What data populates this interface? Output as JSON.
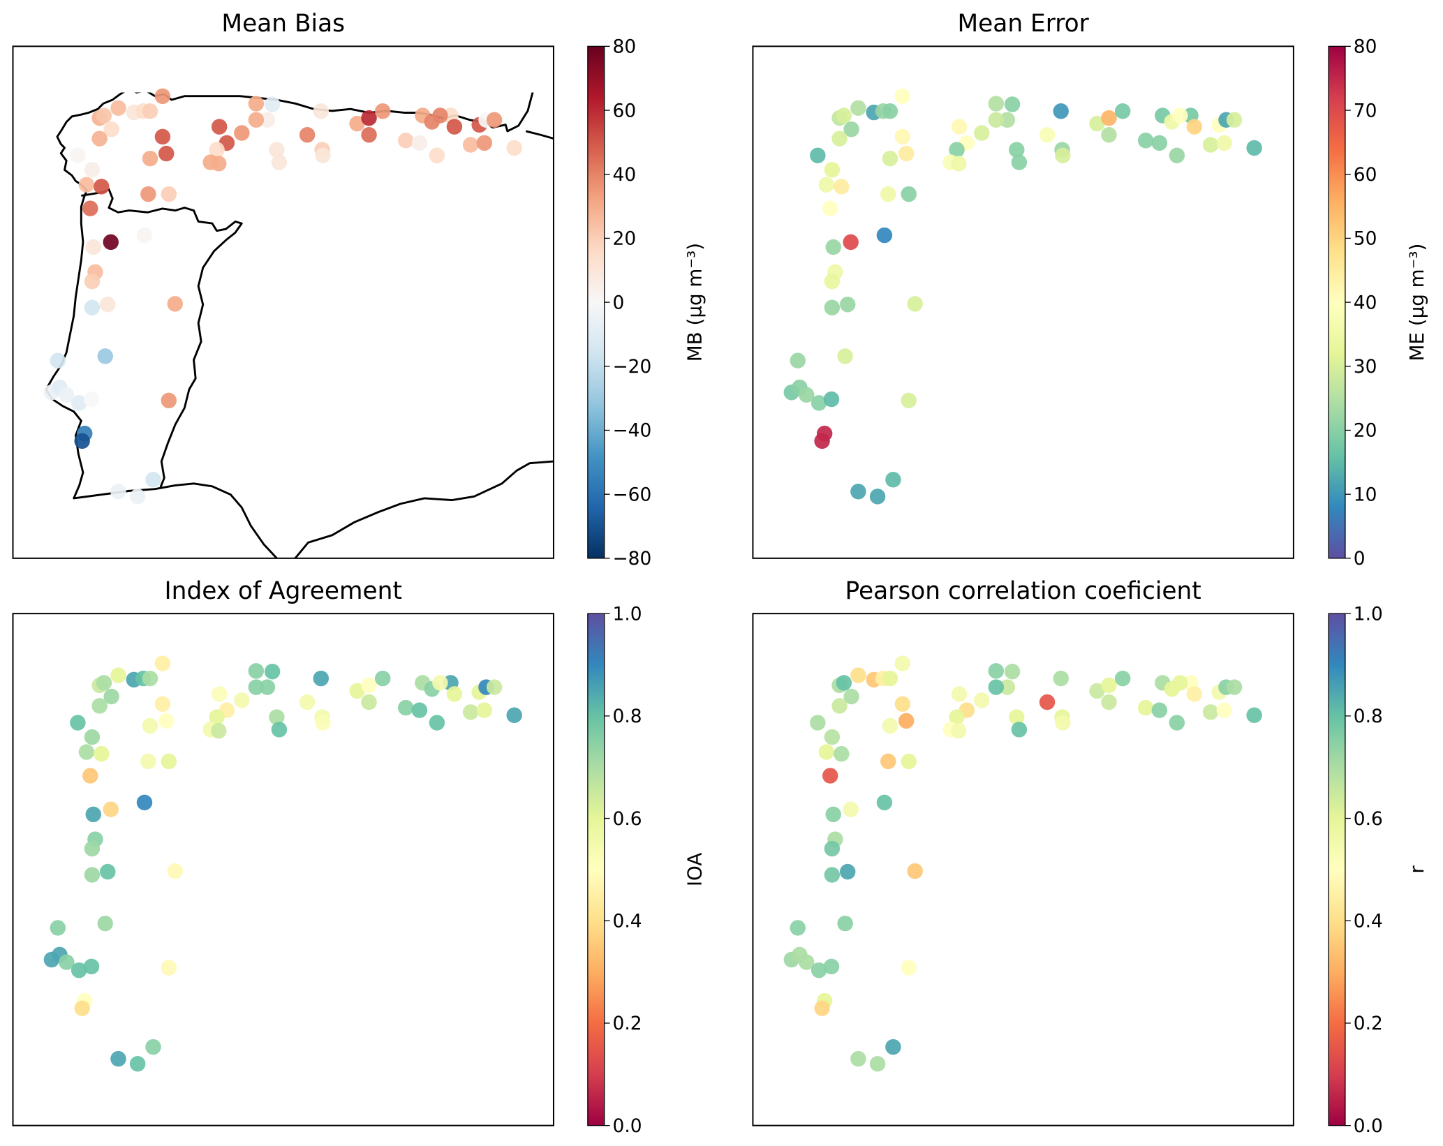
{
  "chart_data": [
    {
      "type": "scatter",
      "title": "Mean Bias",
      "colorbar_label": "MB (μg m⁻³)",
      "colormap": "RdBu_r",
      "range": [
        -80,
        80
      ],
      "ticks": [
        {
          "v": 80,
          "label": "80"
        },
        {
          "v": 60,
          "label": "60"
        },
        {
          "v": 40,
          "label": "40"
        },
        {
          "v": 20,
          "label": "20"
        },
        {
          "v": 0,
          "label": "0"
        },
        {
          "v": -20,
          "label": "−20"
        },
        {
          "v": -40,
          "label": "−40"
        },
        {
          "v": -60,
          "label": "−60"
        },
        {
          "v": -80,
          "label": "−80"
        }
      ],
      "field": "mb"
    },
    {
      "type": "scatter",
      "title": "Mean Error",
      "colorbar_label": "ME (μg m⁻³)",
      "colormap": "Spectral_r",
      "range": [
        0,
        80
      ],
      "ticks": [
        {
          "v": 80,
          "label": "80"
        },
        {
          "v": 70,
          "label": "70"
        },
        {
          "v": 60,
          "label": "60"
        },
        {
          "v": 50,
          "label": "50"
        },
        {
          "v": 40,
          "label": "40"
        },
        {
          "v": 30,
          "label": "30"
        },
        {
          "v": 20,
          "label": "20"
        },
        {
          "v": 10,
          "label": "10"
        },
        {
          "v": 0,
          "label": "0"
        }
      ],
      "field": "me"
    },
    {
      "type": "scatter",
      "title": "Index of Agreement",
      "colorbar_label": "IOA",
      "colormap": "Spectral",
      "range": [
        0,
        1
      ],
      "ticks": [
        {
          "v": 1,
          "label": "1.0"
        },
        {
          "v": 0.8,
          "label": "0.8"
        },
        {
          "v": 0.6,
          "label": "0.6"
        },
        {
          "v": 0.4,
          "label": "0.4"
        },
        {
          "v": 0.2,
          "label": "0.2"
        },
        {
          "v": 0,
          "label": "0.0"
        }
      ],
      "field": "ioa"
    },
    {
      "type": "scatter",
      "title": "Pearson correlation coeficient",
      "colorbar_label": "r",
      "colormap": "Spectral",
      "range": [
        0,
        1
      ],
      "ticks": [
        {
          "v": 1,
          "label": "1.0"
        },
        {
          "v": 0.8,
          "label": "0.8"
        },
        {
          "v": 0.6,
          "label": "0.6"
        },
        {
          "v": 0.4,
          "label": "0.4"
        },
        {
          "v": 0.2,
          "label": "0.2"
        },
        {
          "v": 0,
          "label": "0.0"
        }
      ],
      "field": "r"
    }
  ],
  "map_extent": {
    "lon": [
      -9.78,
      -1.11
    ],
    "lat": [
      36.21,
      44.42
    ]
  },
  "colormaps": {
    "Spectral": [
      "#9e0142",
      "#d53e4f",
      "#f46d43",
      "#fdae61",
      "#fee08b",
      "#ffffbf",
      "#e6f598",
      "#abdda4",
      "#66c2a5",
      "#3288bd",
      "#5e4fa2"
    ],
    "RdBu_r": [
      "#053061",
      "#2166ac",
      "#4393c3",
      "#92c5de",
      "#d1e5f0",
      "#f7f7f7",
      "#fddbc7",
      "#f4a582",
      "#d6604d",
      "#b2182b",
      "#67001f"
    ]
  },
  "stations_columns": [
    "lon",
    "lat",
    "mb",
    "me",
    "ioa",
    "r"
  ],
  "stations": [
    [
      -7.38,
      43.62,
      35,
      40,
      0.45,
      0.55
    ],
    [
      -8.09,
      43.43,
      25,
      25,
      0.6,
      0.4
    ],
    [
      -8.39,
      43.27,
      28,
      27,
      0.65,
      0.7
    ],
    [
      -8.32,
      43.31,
      22,
      30,
      0.7,
      0.8
    ],
    [
      -7.84,
      43.36,
      10,
      12,
      0.85,
      0.35
    ],
    [
      -7.69,
      43.38,
      15,
      22,
      0.8,
      0.45
    ],
    [
      -7.58,
      43.38,
      20,
      20,
      0.7,
      0.6
    ],
    [
      -8.2,
      43.09,
      15,
      22,
      0.72,
      0.7
    ],
    [
      -8.39,
      42.94,
      28,
      30,
      0.7,
      0.65
    ],
    [
      -8.74,
      42.67,
      2,
      15,
      0.8,
      0.7
    ],
    [
      -8.51,
      42.44,
      5,
      32,
      0.72,
      0.68
    ],
    [
      -8.6,
      42.2,
      25,
      35,
      0.7,
      0.6
    ],
    [
      -8.36,
      42.17,
      50,
      45,
      0.6,
      0.7
    ],
    [
      -8.54,
      41.82,
      45,
      40,
      0.35,
      0.15
    ],
    [
      -8.49,
      41.2,
      10,
      22,
      0.85,
      0.75
    ],
    [
      -8.21,
      41.28,
      78,
      70,
      0.38,
      0.55
    ],
    [
      -7.67,
      41.39,
      2,
      8,
      0.9,
      0.8
    ],
    [
      -8.46,
      40.8,
      25,
      35,
      0.75,
      0.7
    ],
    [
      -8.51,
      40.65,
      20,
      33,
      0.72,
      0.78
    ],
    [
      -8.51,
      40.23,
      -15,
      22,
      0.72,
      0.78
    ],
    [
      -8.26,
      40.28,
      10,
      22,
      0.8,
      0.85
    ],
    [
      -7.18,
      40.29,
      30,
      30,
      0.48,
      0.35
    ],
    [
      -9.06,
      39.38,
      -15,
      22,
      0.75,
      0.75
    ],
    [
      -8.3,
      39.45,
      -30,
      30,
      0.72,
      0.75
    ],
    [
      -9.16,
      38.87,
      -5,
      18,
      0.85,
      0.72
    ],
    [
      -9.03,
      38.95,
      -10,
      20,
      0.85,
      0.7
    ],
    [
      -8.92,
      38.83,
      -5,
      22,
      0.75,
      0.7
    ],
    [
      -8.72,
      38.7,
      -10,
      20,
      0.8,
      0.75
    ],
    [
      -8.52,
      38.76,
      0,
      15,
      0.8,
      0.75
    ],
    [
      -7.28,
      38.74,
      35,
      30,
      0.48,
      0.5
    ],
    [
      -8.63,
      38.21,
      -55,
      75,
      0.5,
      0.6
    ],
    [
      -8.67,
      38.09,
      -70,
      75,
      0.4,
      0.38
    ],
    [
      -8.09,
      37.28,
      -5,
      12,
      0.85,
      0.7
    ],
    [
      -7.78,
      37.2,
      -5,
      12,
      0.8,
      0.7
    ],
    [
      -7.53,
      37.47,
      -15,
      15,
      0.75,
      0.85
    ],
    [
      -6.47,
      43.13,
      50,
      42,
      0.52,
      0.55
    ],
    [
      -6.11,
      43.03,
      35,
      30,
      0.55,
      0.55
    ],
    [
      -6.35,
      42.87,
      50,
      40,
      0.45,
      0.4
    ],
    [
      -6.51,
      42.76,
      15,
      20,
      0.6,
      0.6
    ],
    [
      -6.61,
      42.56,
      30,
      38,
      0.55,
      0.5
    ],
    [
      -6.48,
      42.54,
      30,
      35,
      0.65,
      0.55
    ],
    [
      -7.38,
      42.97,
      50,
      42,
      0.45,
      0.4
    ],
    [
      -7.32,
      42.7,
      50,
      45,
      0.5,
      0.3
    ],
    [
      -7.58,
      42.62,
      30,
      30,
      0.55,
      0.55
    ],
    [
      -7.61,
      42.05,
      35,
      35,
      0.55,
      0.35
    ],
    [
      -7.28,
      42.05,
      20,
      20,
      0.6,
      0.6
    ],
    [
      -5.88,
      43.5,
      30,
      25,
      0.75,
      0.75
    ],
    [
      -5.62,
      43.49,
      -10,
      20,
      0.8,
      0.7
    ],
    [
      -5.7,
      43.24,
      5,
      25,
      0.75,
      0.65
    ],
    [
      -5.88,
      43.24,
      30,
      28,
      0.75,
      0.8
    ],
    [
      -5.55,
      42.76,
      10,
      20,
      0.7,
      0.6
    ],
    [
      -5.51,
      42.56,
      10,
      20,
      0.8,
      0.8
    ],
    [
      -4.84,
      43.38,
      10,
      10,
      0.85,
      0.7
    ],
    [
      -5.06,
      43.0,
      40,
      38,
      0.55,
      0.15
    ],
    [
      -4.82,
      42.76,
      20,
      22,
      0.55,
      0.6
    ],
    [
      -4.81,
      42.67,
      10,
      30,
      0.52,
      0.55
    ],
    [
      -4.26,
      43.18,
      30,
      30,
      0.6,
      0.65
    ],
    [
      -4.07,
      43.27,
      60,
      55,
      0.5,
      0.6
    ],
    [
      -4.07,
      43.0,
      45,
      25,
      0.65,
      0.65
    ],
    [
      -3.85,
      43.38,
      35,
      18,
      0.75,
      0.75
    ],
    [
      -3.48,
      42.91,
      20,
      20,
      0.75,
      0.6
    ],
    [
      -3.26,
      42.87,
      5,
      20,
      0.8,
      0.75
    ],
    [
      -3.21,
      43.31,
      30,
      18,
      0.7,
      0.7
    ],
    [
      -3.06,
      43.21,
      40,
      35,
      0.75,
      0.6
    ],
    [
      -2.98,
      42.67,
      15,
      22,
      0.8,
      0.75
    ],
    [
      -2.76,
      43.31,
      15,
      18,
      0.85,
      0.5
    ],
    [
      -2.7,
      43.13,
      50,
      50,
      0.6,
      0.45
    ],
    [
      -2.93,
      43.31,
      40,
      40,
      0.55,
      0.6
    ],
    [
      -2.3,
      43.16,
      50,
      40,
      0.6,
      0.55
    ],
    [
      -2.19,
      43.24,
      0,
      12,
      0.9,
      0.75
    ],
    [
      -2.06,
      43.24,
      35,
      30,
      0.65,
      0.7
    ],
    [
      -2.44,
      42.84,
      25,
      30,
      0.65,
      0.65
    ],
    [
      -2.22,
      42.87,
      35,
      35,
      0.6,
      0.5
    ],
    [
      -1.74,
      42.79,
      15,
      15,
      0.85,
      0.8
    ]
  ]
}
